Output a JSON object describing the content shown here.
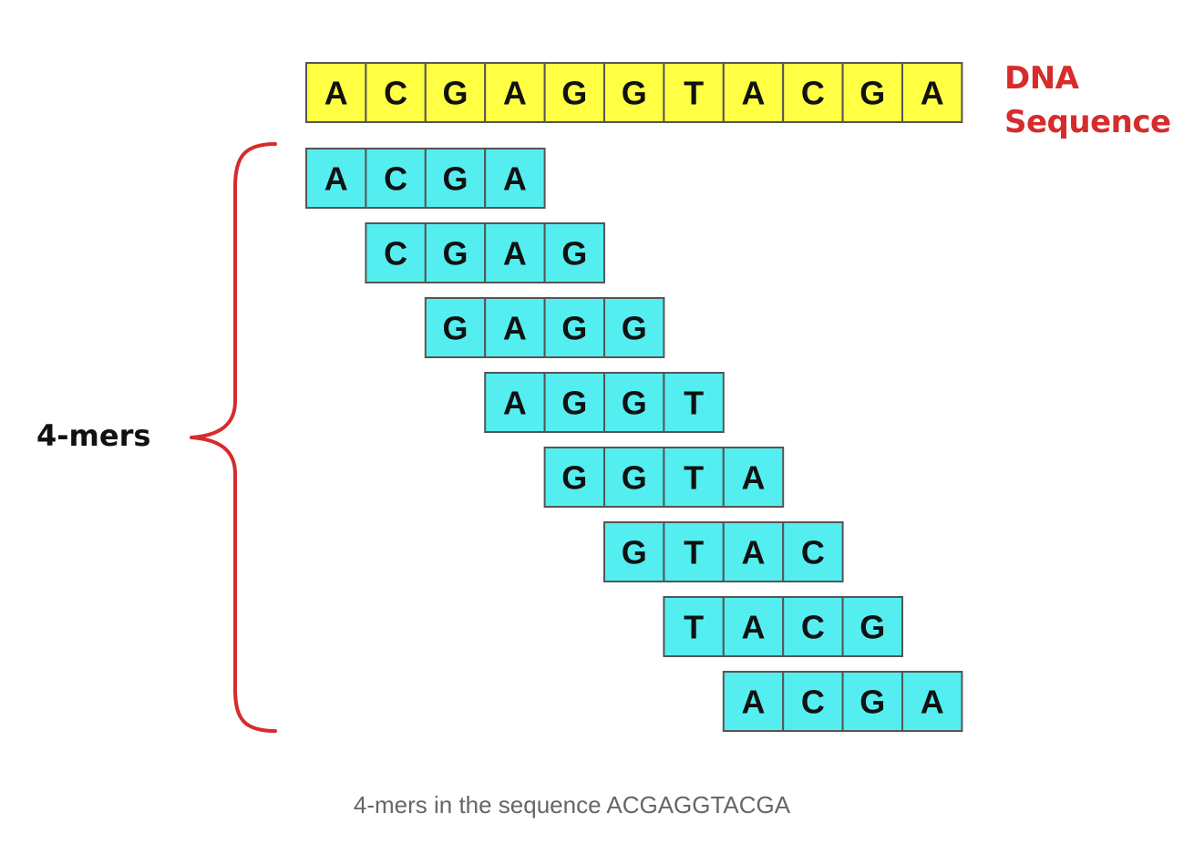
{
  "sequence": {
    "text": "ACGAGGTACGA",
    "bases": [
      "A",
      "C",
      "G",
      "A",
      "G",
      "G",
      "T",
      "A",
      "C",
      "G",
      "A"
    ],
    "label_line1": "DNA",
    "label_line2": "Sequence",
    "fill_color": "#ffff44"
  },
  "kmers": {
    "label": "4-mers",
    "k": 4,
    "fill_color": "#55eef0",
    "brace_color": "#d62c2c",
    "items": [
      {
        "offset": 0,
        "bases": [
          "A",
          "C",
          "G",
          "A"
        ]
      },
      {
        "offset": 1,
        "bases": [
          "C",
          "G",
          "A",
          "G"
        ]
      },
      {
        "offset": 2,
        "bases": [
          "G",
          "A",
          "G",
          "G"
        ]
      },
      {
        "offset": 3,
        "bases": [
          "A",
          "G",
          "G",
          "T"
        ]
      },
      {
        "offset": 4,
        "bases": [
          "G",
          "G",
          "T",
          "A"
        ]
      },
      {
        "offset": 5,
        "bases": [
          "G",
          "T",
          "A",
          "C"
        ]
      },
      {
        "offset": 6,
        "bases": [
          "T",
          "A",
          "C",
          "G"
        ]
      },
      {
        "offset": 7,
        "bases": [
          "A",
          "C",
          "G",
          "A"
        ]
      }
    ]
  },
  "caption": "4-mers in the sequence ACGAGGTACGA"
}
